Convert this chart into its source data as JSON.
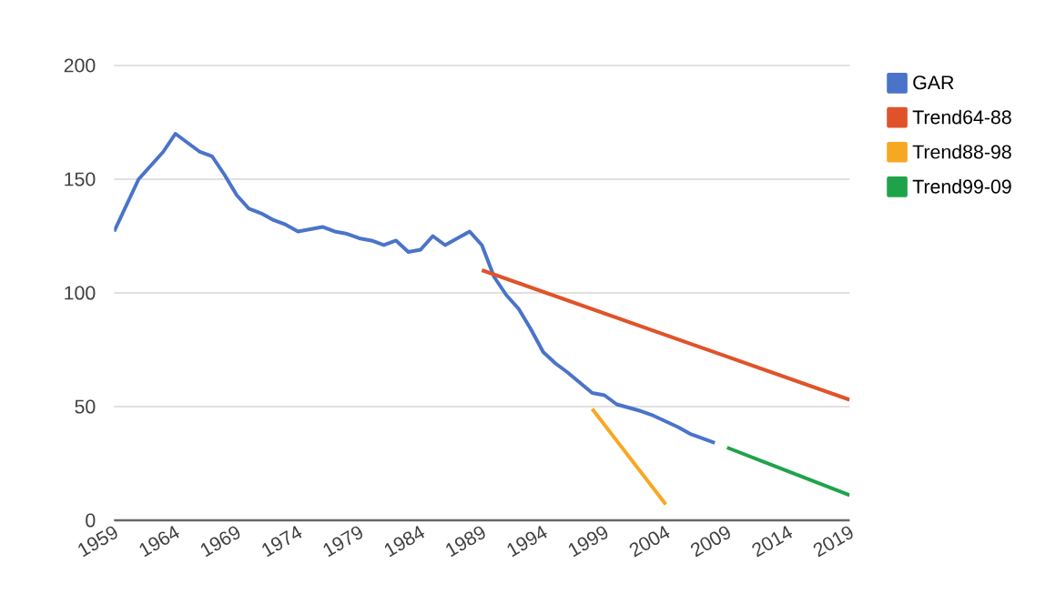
{
  "chart_data": {
    "type": "line",
    "x": [
      1959,
      1961,
      1962,
      1963,
      1964,
      1966,
      1967,
      1968,
      1969,
      1970,
      1971,
      1972,
      1973,
      1974,
      1976,
      1977,
      1978,
      1979,
      1980,
      1981,
      1982,
      1983,
      1984,
      1985,
      1986,
      1988,
      1989,
      1990,
      1991,
      1992,
      1993,
      1994,
      1995,
      1996,
      1998,
      1999,
      2000,
      2002,
      2003,
      2005,
      2006,
      2008
    ],
    "series": [
      {
        "name": "GAR",
        "color": "#4a74c9",
        "values": [
          127,
          150,
          156,
          162,
          170,
          162,
          160,
          152,
          143,
          137,
          135,
          132,
          130,
          127,
          129,
          127,
          126,
          124,
          123,
          121,
          123,
          118,
          119,
          125,
          121,
          127,
          121,
          107,
          99,
          93,
          84,
          74,
          69,
          65,
          56,
          55,
          51,
          48,
          46,
          41,
          38,
          34
        ]
      },
      {
        "name": "Trend64-88",
        "color": "#e0532a",
        "x": [
          1989,
          2019
        ],
        "values": [
          110,
          53
        ]
      },
      {
        "name": "Trend88-98",
        "color": "#f7a823",
        "x": [
          1998,
          2004
        ],
        "values": [
          49,
          7
        ]
      },
      {
        "name": "Trend99-09",
        "color": "#1fa34a",
        "x": [
          2009,
          2019
        ],
        "values": [
          32,
          11
        ]
      }
    ],
    "xlim": [
      1959,
      2019
    ],
    "xticks": [
      1959,
      1964,
      1969,
      1974,
      1979,
      1984,
      1989,
      1994,
      1999,
      2004,
      2009,
      2014,
      2019
    ],
    "ylim": [
      0,
      200
    ],
    "yticks": [
      0,
      50,
      100,
      150,
      200
    ],
    "grid": "y",
    "legend": "top right",
    "marker": "none",
    "line_style": "solid"
  }
}
